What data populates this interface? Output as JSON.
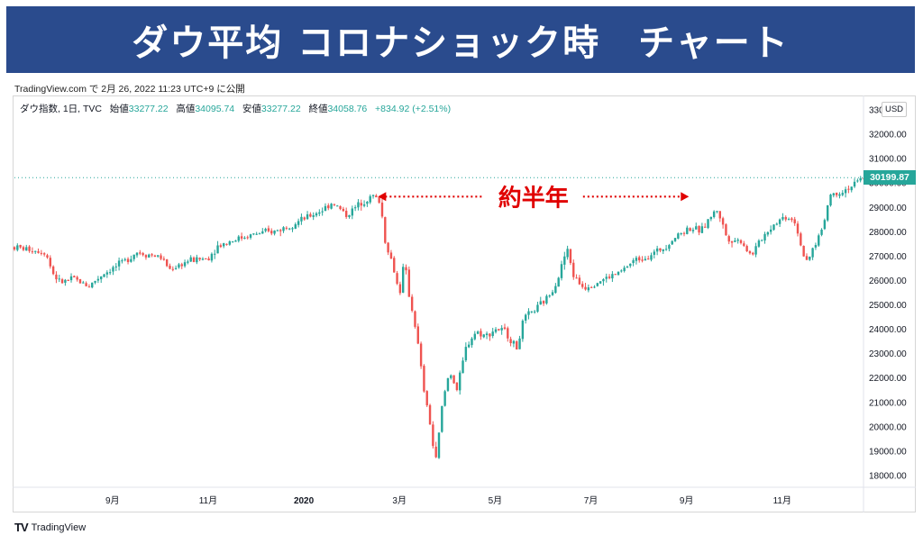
{
  "title": "ダウ平均 コロナショック時　チャート",
  "published_line": "TradingView.com で 2月 26, 2022 11:23 UTC+9 に公開",
  "legend": {
    "symbol": "ダウ指数, 1日, TVC",
    "open_label": "始値",
    "open": "33277.22",
    "high_label": "高値",
    "high": "34095.74",
    "low_label": "安値",
    "low": "33277.22",
    "close_label": "終値",
    "close": "34058.76",
    "change": "+834.92 (+2.51%)"
  },
  "currency": "USD",
  "last_price": "30199.87",
  "annotation_text": "約半年",
  "footer_brand": "TradingView",
  "colors": {
    "up": "#26a69a",
    "down": "#ef5350",
    "banner": "#2a4b8d",
    "annotation": "#e00000"
  },
  "chart_data": {
    "type": "candlestick",
    "ylim": [
      17500,
      33500
    ],
    "y_ticks": [
      "18000.00",
      "19000.00",
      "20000.00",
      "21000.00",
      "22000.00",
      "23000.00",
      "24000.00",
      "25000.00",
      "26000.00",
      "27000.00",
      "28000.00",
      "29000.00",
      "30000.00",
      "31000.00",
      "32000.00",
      "33000.00"
    ],
    "x_ticks": [
      "9月",
      "11月",
      "2020",
      "3月",
      "5月",
      "7月",
      "9月",
      "11月"
    ],
    "x_tick_positions": [
      4.0,
      6.0,
      8.0,
      10.0,
      12.0,
      14.0,
      16.0,
      18.0
    ],
    "xlim": [
      1.95,
      19.7
    ],
    "price_path": [
      [
        1.95,
        27350
      ],
      [
        2.3,
        27250
      ],
      [
        2.6,
        27150
      ],
      [
        2.75,
        26300
      ],
      [
        2.9,
        25900
      ],
      [
        3.2,
        26050
      ],
      [
        3.5,
        25750
      ],
      [
        3.8,
        26250
      ],
      [
        4.2,
        26700
      ],
      [
        4.5,
        27150
      ],
      [
        5.0,
        26950
      ],
      [
        5.2,
        26450
      ],
      [
        5.6,
        26800
      ],
      [
        6.0,
        26900
      ],
      [
        6.2,
        27400
      ],
      [
        6.6,
        27700
      ],
      [
        7.0,
        27900
      ],
      [
        7.4,
        28000
      ],
      [
        8.0,
        28500
      ],
      [
        8.4,
        28900
      ],
      [
        8.6,
        29200
      ],
      [
        8.9,
        28650
      ],
      [
        9.2,
        29200
      ],
      [
        9.45,
        29450
      ],
      [
        9.6,
        29200
      ],
      [
        9.7,
        27600
      ],
      [
        9.85,
        26700
      ],
      [
        10.0,
        25400
      ],
      [
        10.1,
        26800
      ],
      [
        10.2,
        25400
      ],
      [
        10.35,
        23900
      ],
      [
        10.5,
        21600
      ],
      [
        10.65,
        20000
      ],
      [
        10.75,
        18400
      ],
      [
        10.9,
        21000
      ],
      [
        11.05,
        22300
      ],
      [
        11.2,
        21500
      ],
      [
        11.4,
        23300
      ],
      [
        11.6,
        23900
      ],
      [
        11.8,
        23700
      ],
      [
        12.0,
        24000
      ],
      [
        12.2,
        23900
      ],
      [
        12.45,
        23200
      ],
      [
        12.6,
        24400
      ],
      [
        12.85,
        24800
      ],
      [
        13.1,
        25300
      ],
      [
        13.3,
        26000
      ],
      [
        13.5,
        27300
      ],
      [
        13.65,
        26100
      ],
      [
        13.85,
        25700
      ],
      [
        14.1,
        25900
      ],
      [
        14.35,
        26100
      ],
      [
        14.6,
        26300
      ],
      [
        14.9,
        26800
      ],
      [
        15.2,
        27000
      ],
      [
        15.5,
        27300
      ],
      [
        15.75,
        27750
      ],
      [
        16.05,
        28150
      ],
      [
        16.3,
        28000
      ],
      [
        16.5,
        28600
      ],
      [
        16.65,
        28900
      ],
      [
        16.85,
        27700
      ],
      [
        17.15,
        27600
      ],
      [
        17.35,
        27000
      ],
      [
        17.6,
        27800
      ],
      [
        17.85,
        28350
      ],
      [
        18.05,
        28600
      ],
      [
        18.25,
        28500
      ],
      [
        18.4,
        27400
      ],
      [
        18.5,
        26600
      ],
      [
        18.65,
        27300
      ],
      [
        18.85,
        28200
      ],
      [
        19.0,
        29500
      ],
      [
        19.2,
        29600
      ],
      [
        19.45,
        29850
      ],
      [
        19.7,
        30200
      ]
    ],
    "annotations": [
      {
        "text": "約半年",
        "from_x": 9.55,
        "to_x": 16.05,
        "y": 29350
      }
    ]
  }
}
